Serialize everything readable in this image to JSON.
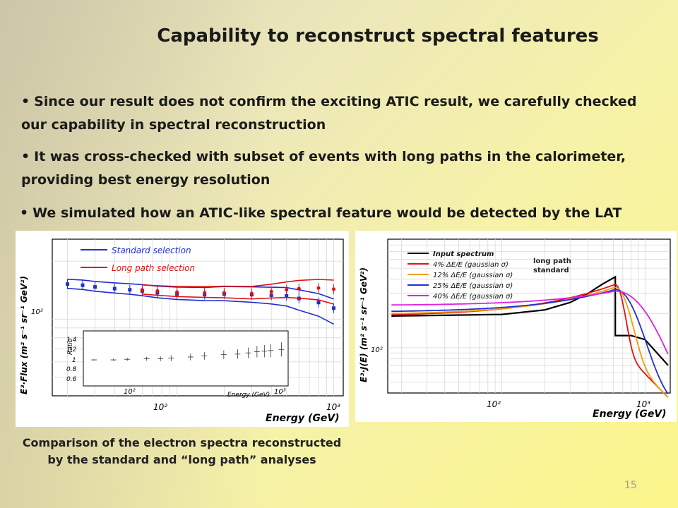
{
  "slide": {
    "title": "Capability to reconstruct spectral features",
    "bullets": [
      {
        "line1": "Since our result does not confirm the exciting ATIC result, we carefully checked",
        "line2": "our capability in spectral reconstruction"
      },
      {
        "line1": "It was cross-checked with subset of events with long paths in the calorimeter,",
        "line2": "providing best energy resolution"
      },
      {
        "line1": "We simulated how an ATIC-like spectral feature  would be detected by the LAT"
      }
    ],
    "caption": "Comparison of the electron spectra reconstructed by the standard and “long path” analyses",
    "page_number": "15",
    "bullet_symbol": "•"
  },
  "chart_data": [
    {
      "type": "line",
      "xlabel": "Energy (GeV)",
      "ylabel": "E³·Flux (m² s⁻¹ sr⁻¹ GeV²)",
      "x_scale": "log",
      "y_scale": "log",
      "x_tick_labels": [
        "10²",
        "10³"
      ],
      "y_tick_labels": [
        "10²"
      ],
      "legend": [
        "Standard selection",
        "Long path selection"
      ],
      "colors": {
        "standard": "#1f2fd0",
        "long_path": "#e01010"
      },
      "series": [
        {
          "name": "Standard selection",
          "x": [
            20,
            25,
            30,
            40,
            50,
            60,
            75,
            100,
            150,
            200,
            300,
            400,
            500,
            600,
            800,
            1000
          ],
          "y": [
            152,
            150,
            147,
            144,
            142,
            140,
            137,
            135,
            134,
            135,
            134,
            133,
            132,
            128,
            122,
            114
          ]
        },
        {
          "name": "Long path selection",
          "x": [
            60,
            75,
            100,
            150,
            200,
            300,
            400,
            500,
            600,
            800,
            1000
          ],
          "y": [
            142,
            140,
            138,
            137,
            137,
            136,
            139,
            142,
            144,
            145,
            143
          ]
        }
      ],
      "inset": {
        "type": "line",
        "xlabel": "Energy (GeV)",
        "ylabel": "Ratio",
        "y_tick_labels": [
          "0.6",
          "0.8",
          "1",
          "1.2",
          "1.4"
        ],
        "x_tick_labels": [
          "10²",
          "10³"
        ],
        "ylim": [
          0.55,
          1.5
        ],
        "x": [
          20,
          30,
          40,
          60,
          80,
          100,
          150,
          200,
          300,
          400,
          500,
          600,
          700,
          800,
          1000
        ],
        "y": [
          1.0,
          1.0,
          1.01,
          1.02,
          1.02,
          1.03,
          1.05,
          1.07,
          1.09,
          1.1,
          1.12,
          1.14,
          1.15,
          1.16,
          1.18
        ]
      }
    },
    {
      "type": "line",
      "xlabel": "Energy (GeV)",
      "ylabel": "E³·J(E) (m² s⁻¹ sr⁻¹ GeV²)",
      "x_scale": "log",
      "y_scale": "log",
      "x_tick_labels": [
        "10²",
        "10³"
      ],
      "y_tick_labels": [
        "10²"
      ],
      "annotations": [
        "long path",
        "standard"
      ],
      "series": [
        {
          "name": "Input spectrum",
          "color": "#000000"
        },
        {
          "name": "4% ΔE/E (gaussian σ)",
          "color": "#e81010"
        },
        {
          "name": "12% ΔE/E (gaussian σ)",
          "color": "#f0a000"
        },
        {
          "name": "25% ΔE/E (gaussian σ)",
          "color": "#2030d0"
        },
        {
          "name": "40% ΔE/E (gaussian σ)",
          "color": "#e020e0"
        }
      ]
    }
  ]
}
